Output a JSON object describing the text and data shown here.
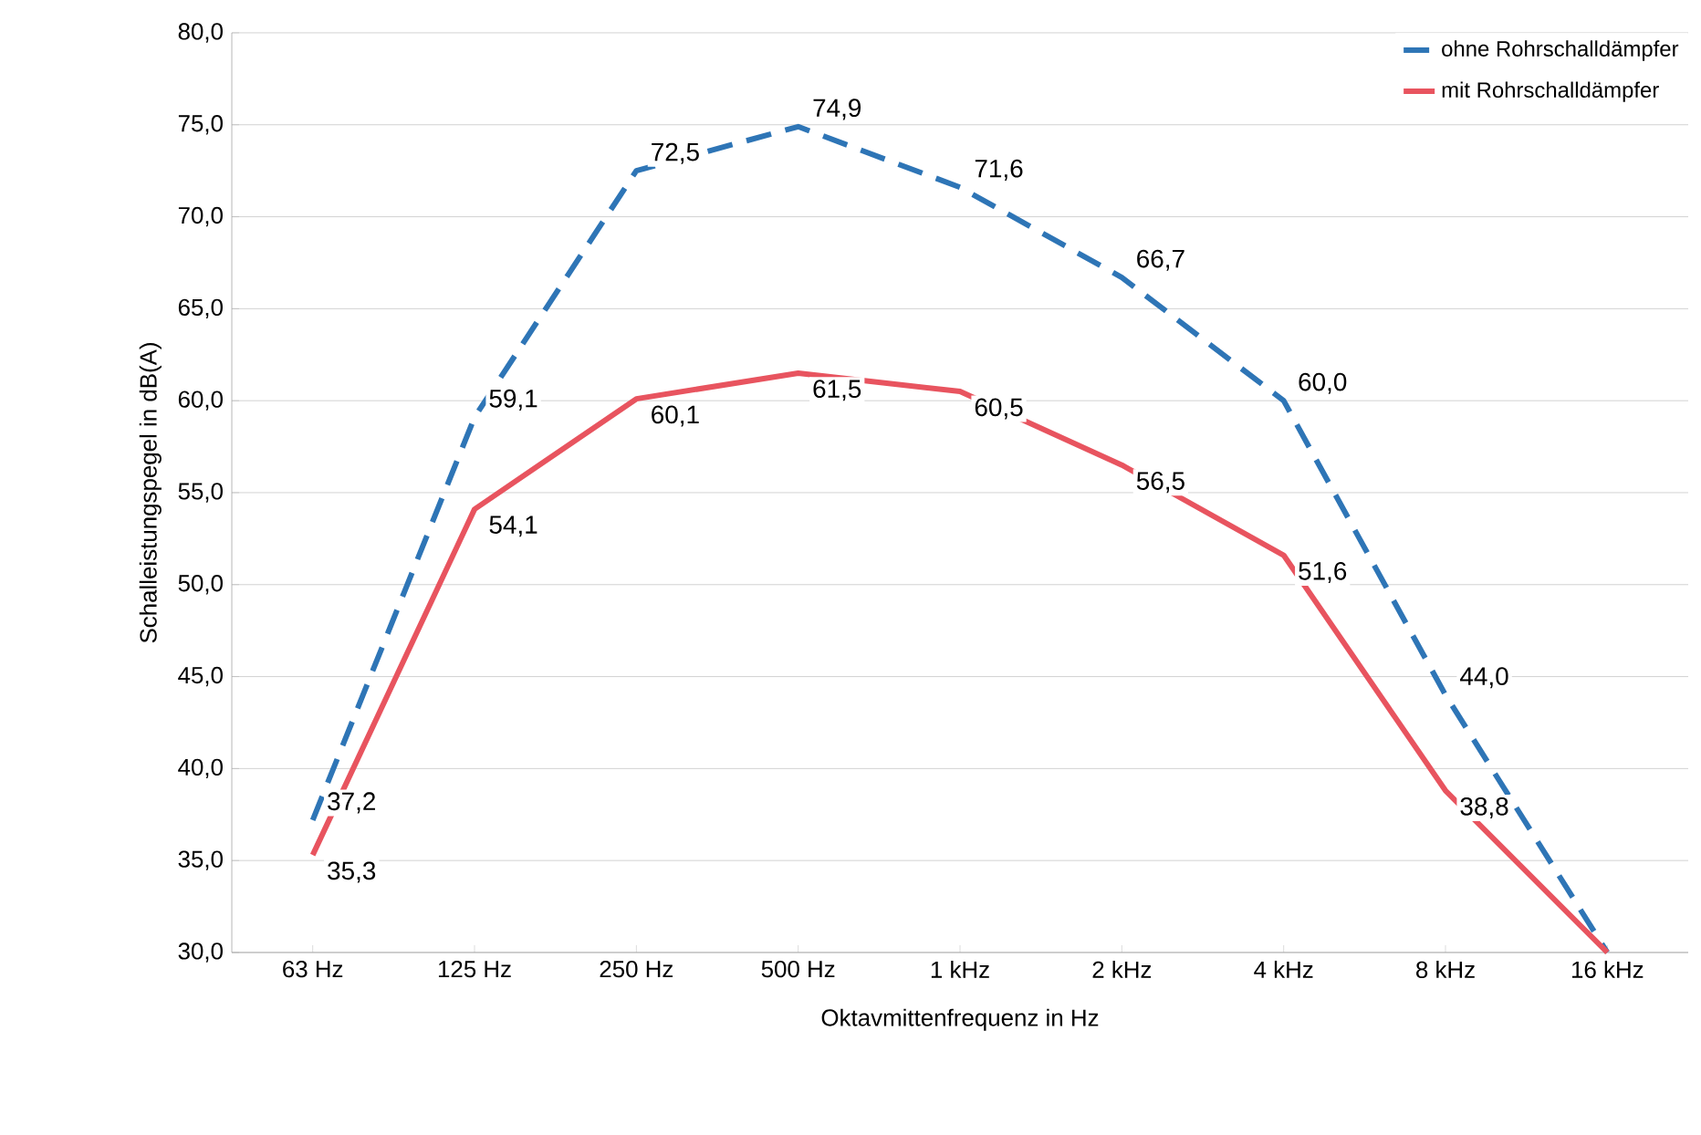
{
  "chart_data": {
    "type": "line",
    "xlabel": "Oktavmittenfrequenz in Hz",
    "ylabel": "Schalleistungspegel in dB(A)",
    "categories": [
      "63 Hz",
      "125 Hz",
      "250 Hz",
      "500 Hz",
      "1 kHz",
      "2 kHz",
      "4 kHz",
      "8 kHz",
      "16 kHz"
    ],
    "series": [
      {
        "name": "ohne Rohrschalldämpfer",
        "color": "#2e75b6",
        "line_style": "dashed",
        "values": [
          37.2,
          59.1,
          72.5,
          74.9,
          71.6,
          66.7,
          60.0,
          44.0,
          30.0
        ],
        "value_labels": [
          "37,2",
          "59,1",
          "72,5",
          "74,9",
          "71,6",
          "66,7",
          "60,0",
          "44,0",
          null
        ]
      },
      {
        "name": "mit Rohrschalldämpfer",
        "color": "#e8545f",
        "line_style": "solid",
        "values": [
          35.3,
          54.1,
          60.1,
          61.5,
          60.5,
          56.5,
          51.6,
          38.8,
          30.0
        ],
        "value_labels": [
          "35,3",
          "54,1",
          "60,1",
          "61,5",
          "60,5",
          "56,5",
          "51,6",
          "38,8",
          null
        ]
      }
    ],
    "ylim": [
      30,
      80
    ],
    "yticks": [
      {
        "value": 30,
        "label": "30,0"
      },
      {
        "value": 35,
        "label": "35,0"
      },
      {
        "value": 40,
        "label": "40,0"
      },
      {
        "value": 45,
        "label": "45,0"
      },
      {
        "value": 50,
        "label": "50,0"
      },
      {
        "value": 55,
        "label": "55,0"
      },
      {
        "value": 60,
        "label": "60,0"
      },
      {
        "value": 65,
        "label": "65,0"
      },
      {
        "value": 70,
        "label": "70,0"
      },
      {
        "value": 75,
        "label": "75,0"
      },
      {
        "value": 80,
        "label": "80,0"
      }
    ],
    "grid": "y",
    "legend": "top right",
    "marker": "none"
  }
}
